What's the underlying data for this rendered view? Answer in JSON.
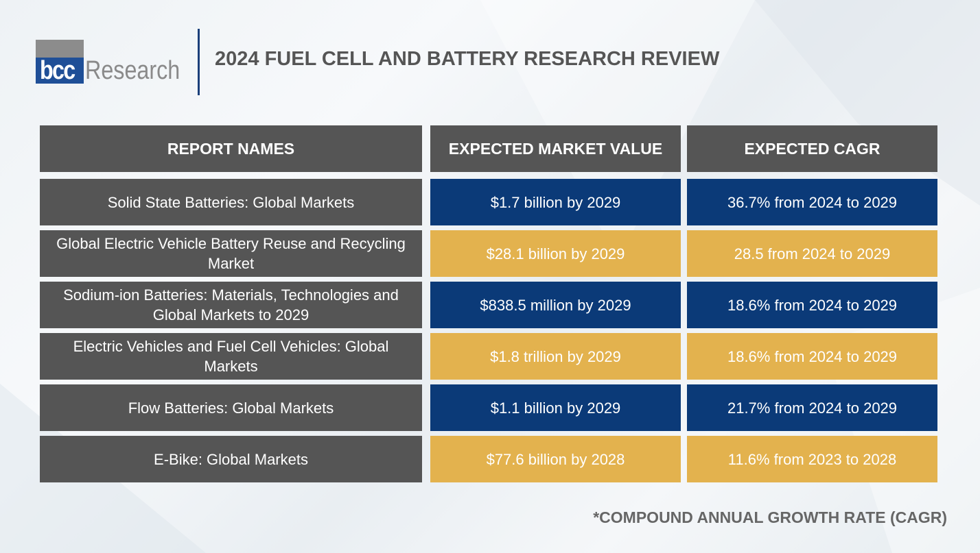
{
  "logo": {
    "brand": "bcc",
    "name": "Research"
  },
  "title": "2024 FUEL CELL AND BATTERY RESEARCH REVIEW",
  "table": {
    "headers": [
      "REPORT NAMES",
      "EXPECTED MARKET VALUE",
      "EXPECTED CAGR"
    ],
    "rows": [
      {
        "name": "Solid State Batteries: Global Markets",
        "value": "$1.7 billion by 2029",
        "cagr": "36.7% from 2024 to 2029",
        "color": "#0b3a78"
      },
      {
        "name": "Global Electric Vehicle Battery Reuse and Recycling Market",
        "value": "$28.1 billion by 2029",
        "cagr": "28.5 from 2024 to 2029",
        "color": "#e3b24e"
      },
      {
        "name": "Sodium-ion Batteries: Materials, Technologies and Global Markets to 2029",
        "value": "$838.5 million by 2029",
        "cagr": "18.6% from 2024 to 2029",
        "color": "#0b3a78"
      },
      {
        "name": "Electric Vehicles and Fuel Cell Vehicles: Global Markets",
        "value": "$1.8 trillion by 2029",
        "cagr": "18.6% from 2024 to 2029",
        "color": "#e3b24e"
      },
      {
        "name": "Flow Batteries: Global Markets",
        "value": "$1.1 billion by 2029",
        "cagr": "21.7% from 2024 to 2029",
        "color": "#0b3a78"
      },
      {
        "name": "E-Bike: Global Markets",
        "value": "$77.6 billion by 2028",
        "cagr": "11.6% from 2023 to 2028",
        "color": "#e3b24e"
      }
    ]
  },
  "footnote": "*COMPOUND ANNUAL GROWTH RATE (CAGR)"
}
